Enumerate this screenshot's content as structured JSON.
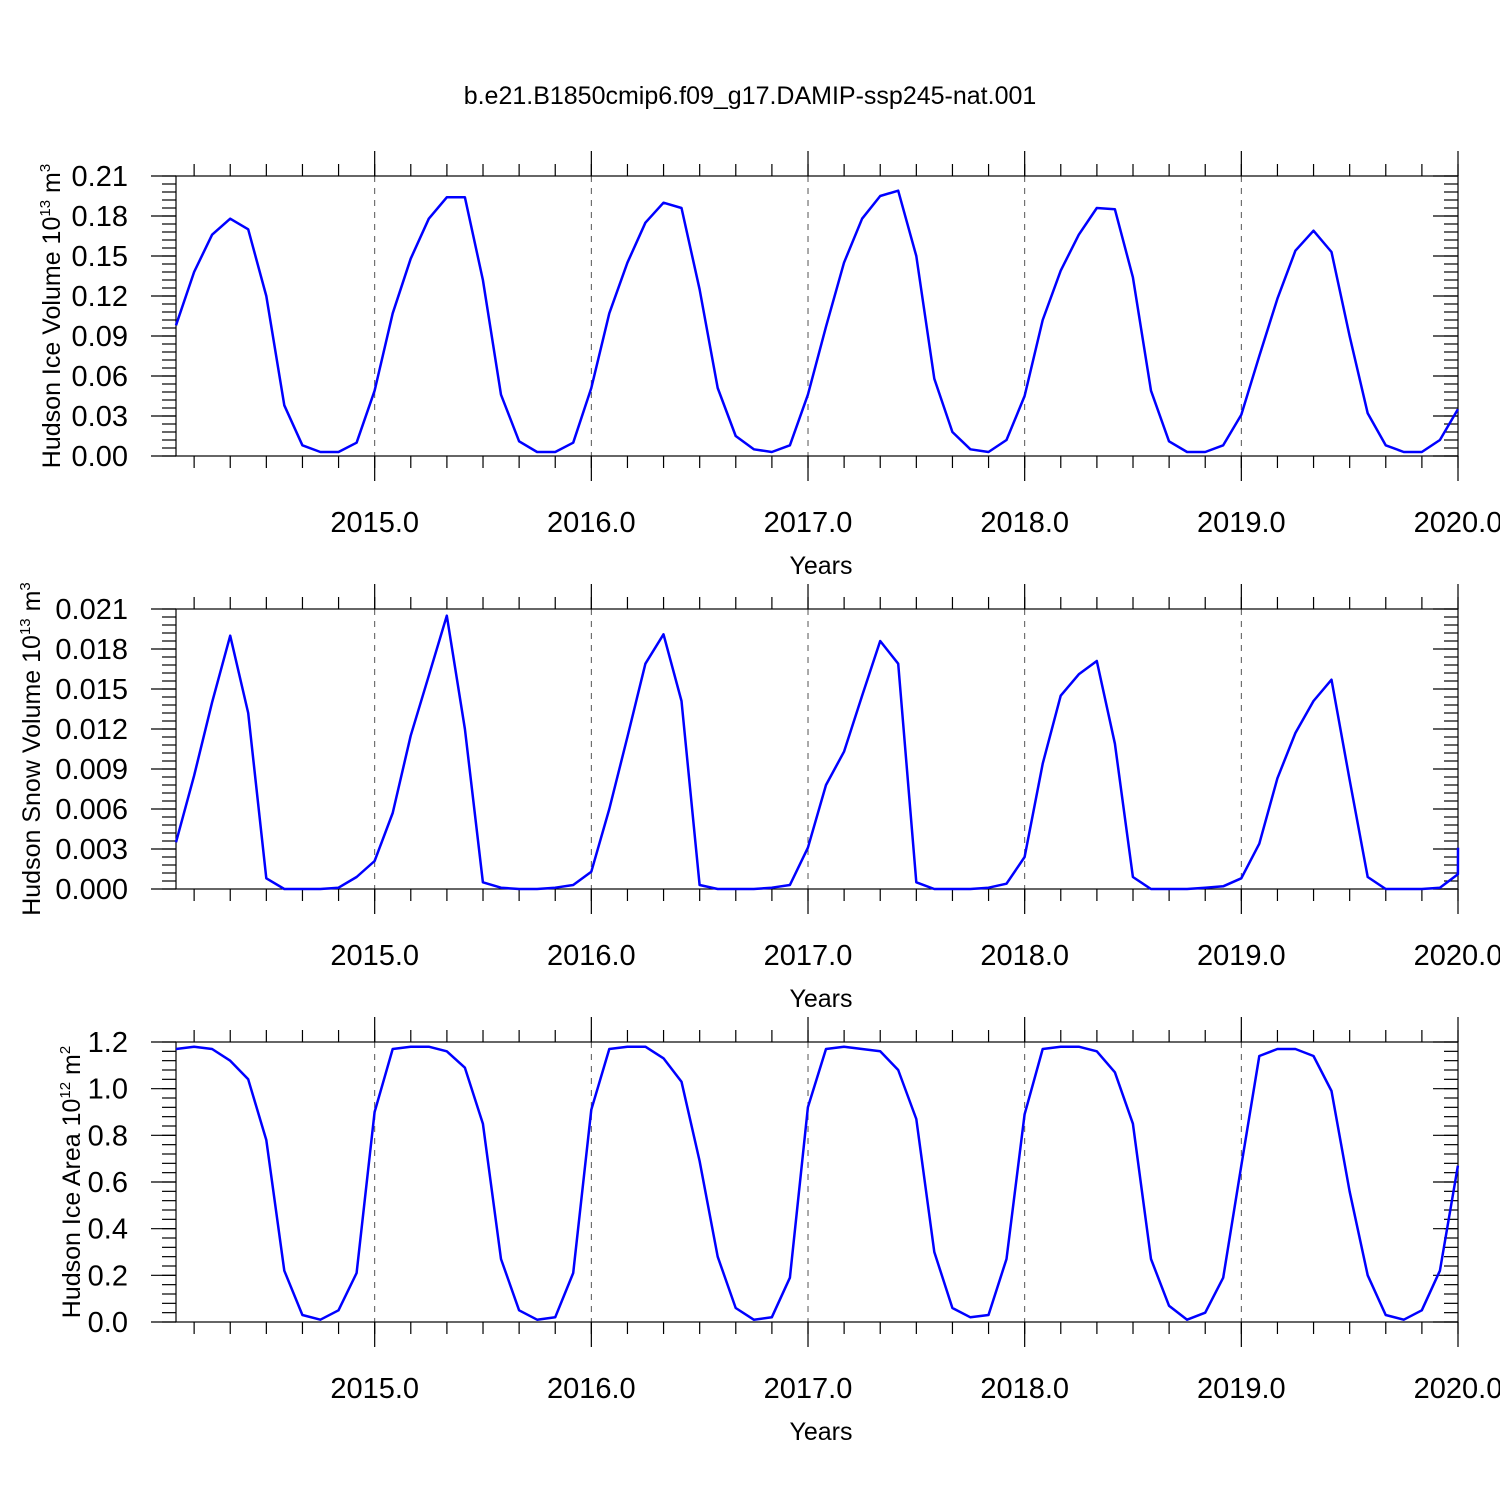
{
  "title": "b.e21.B1850cmip6.f09_g17.DAMIP-ssp245-nat.001",
  "colors": {
    "line": "#0000ff",
    "axis": "#000000",
    "grid": "#555555"
  },
  "chart_data": [
    {
      "type": "line",
      "title": "b.e21.B1850cmip6.f09_g17.DAMIP-ssp245-nat.001",
      "xlabel": "Years",
      "ylabel": "Hudson Ice Volume 10",
      "ylabel_exp": "13",
      "ylabel_unit": " m",
      "ylabel_unit_exp": "3",
      "xlim": [
        2014.083,
        2020.0
      ],
      "ylim": [
        0.0,
        0.21
      ],
      "xticks": [
        2015.0,
        2016.0,
        2017.0,
        2018.0,
        2019.0,
        2020.0
      ],
      "xtick_labels": [
        "2015.0",
        "2016.0",
        "2017.0",
        "2018.0",
        "2019.0",
        "2020.0"
      ],
      "yticks": [
        0.0,
        0.03,
        0.06,
        0.09,
        0.12,
        0.15,
        0.18,
        0.21
      ],
      "ytick_labels": [
        "0.00",
        "0.03",
        "0.06",
        "0.09",
        "0.12",
        "0.15",
        "0.18",
        "0.21"
      ],
      "grid": "dashed vertical lines at year boundaries",
      "series": [
        {
          "color": "#0000ff",
          "values": [
            0.098,
            0.138,
            0.166,
            0.178,
            0.17,
            0.12,
            0.038,
            0.008,
            0.003,
            0.003,
            0.01,
            0.049,
            0.107,
            0.148,
            0.178,
            0.194,
            0.194,
            0.132,
            0.046,
            0.011,
            0.003,
            0.003,
            0.01,
            0.051,
            0.107,
            0.145,
            0.175,
            0.19,
            0.186,
            0.125,
            0.051,
            0.015,
            0.005,
            0.003,
            0.008,
            0.046,
            0.097,
            0.145,
            0.178,
            0.195,
            0.199,
            0.15,
            0.058,
            0.018,
            0.005,
            0.003,
            0.012,
            0.045,
            0.102,
            0.139,
            0.166,
            0.186,
            0.185,
            0.134,
            0.049,
            0.011,
            0.003,
            0.003,
            0.008,
            0.031,
            0.075,
            0.118,
            0.154,
            0.169,
            0.153,
            0.09,
            0.032,
            0.008,
            0.003,
            0.003,
            0.012,
            0.035
          ]
        }
      ]
    },
    {
      "type": "line",
      "xlabel": "Years",
      "ylabel": "Hudson Snow Volume 10",
      "ylabel_exp": "13",
      "ylabel_unit": " m",
      "ylabel_unit_exp": "3",
      "xlim": [
        2014.083,
        2020.0
      ],
      "ylim": [
        0.0,
        0.021
      ],
      "xticks": [
        2015.0,
        2016.0,
        2017.0,
        2018.0,
        2019.0,
        2020.0
      ],
      "xtick_labels": [
        "2015.0",
        "2016.0",
        "2017.0",
        "2018.0",
        "2019.0",
        "2020.0"
      ],
      "yticks": [
        0.0,
        0.003,
        0.006,
        0.009,
        0.012,
        0.015,
        0.018,
        0.021
      ],
      "ytick_labels": [
        "0.000",
        "0.003",
        "0.006",
        "0.009",
        "0.012",
        "0.015",
        "0.018",
        "0.021"
      ],
      "grid": "dashed vertical lines at year boundaries",
      "series": [
        {
          "color": "#0000ff",
          "values": [
            0.0035,
            0.0085,
            0.014,
            0.019,
            0.0132,
            0.0008,
            0.0,
            0.0,
            0.0,
            0.0001,
            0.0009,
            0.0021,
            0.0057,
            0.0115,
            0.016,
            0.0205,
            0.012,
            0.0005,
            0.0001,
            0.0,
            0.0,
            0.0001,
            0.0003,
            0.0013,
            0.006,
            0.0114,
            0.0169,
            0.0191,
            0.0141,
            0.0003,
            0.0,
            0.0,
            0.0,
            0.0001,
            0.0003,
            0.0031,
            0.0078,
            0.0103,
            0.0145,
            0.0186,
            0.0169,
            0.0005,
            0.0,
            0.0,
            0.0,
            0.0001,
            0.0004,
            0.0024,
            0.0094,
            0.0145,
            0.0161,
            0.0171,
            0.0109,
            0.0009,
            0.0,
            0.0,
            0.0,
            0.0001,
            0.0002,
            0.0008,
            0.0034,
            0.0083,
            0.0117,
            0.0141,
            0.0157,
            0.0082,
            0.0009,
            0.0,
            0.0,
            0.0,
            0.0001,
            0.0011,
            0.0031
          ]
        }
      ]
    },
    {
      "type": "line",
      "xlabel": "Years",
      "ylabel": "Hudson Ice Area 10",
      "ylabel_exp": "12",
      "ylabel_unit": " m",
      "ylabel_unit_exp": "2",
      "xlim": [
        2014.083,
        2020.0
      ],
      "ylim": [
        0.0,
        1.2
      ],
      "xticks": [
        2015.0,
        2016.0,
        2017.0,
        2018.0,
        2019.0,
        2020.0
      ],
      "xtick_labels": [
        "2015.0",
        "2016.0",
        "2017.0",
        "2018.0",
        "2019.0",
        "2020.0"
      ],
      "yticks": [
        0.0,
        0.2,
        0.4,
        0.6,
        0.8,
        1.0,
        1.2
      ],
      "ytick_labels": [
        "0.0",
        "0.2",
        "0.4",
        "0.6",
        "0.8",
        "1.0",
        "1.2"
      ],
      "grid": "dashed vertical lines at year boundaries",
      "series": [
        {
          "color": "#0000ff",
          "values": [
            1.17,
            1.18,
            1.17,
            1.12,
            1.04,
            0.78,
            0.22,
            0.03,
            0.01,
            0.05,
            0.21,
            0.9,
            1.17,
            1.18,
            1.18,
            1.16,
            1.09,
            0.85,
            0.27,
            0.05,
            0.01,
            0.02,
            0.21,
            0.91,
            1.17,
            1.18,
            1.18,
            1.13,
            1.03,
            0.69,
            0.28,
            0.06,
            0.01,
            0.02,
            0.19,
            0.92,
            1.17,
            1.18,
            1.17,
            1.16,
            1.08,
            0.87,
            0.3,
            0.06,
            0.02,
            0.03,
            0.27,
            0.89,
            1.17,
            1.18,
            1.18,
            1.16,
            1.07,
            0.85,
            0.27,
            0.07,
            0.01,
            0.04,
            0.19,
            0.67,
            1.14,
            1.17,
            1.17,
            1.14,
            0.99,
            0.56,
            0.2,
            0.03,
            0.01,
            0.05,
            0.22,
            0.67
          ]
        }
      ]
    }
  ]
}
